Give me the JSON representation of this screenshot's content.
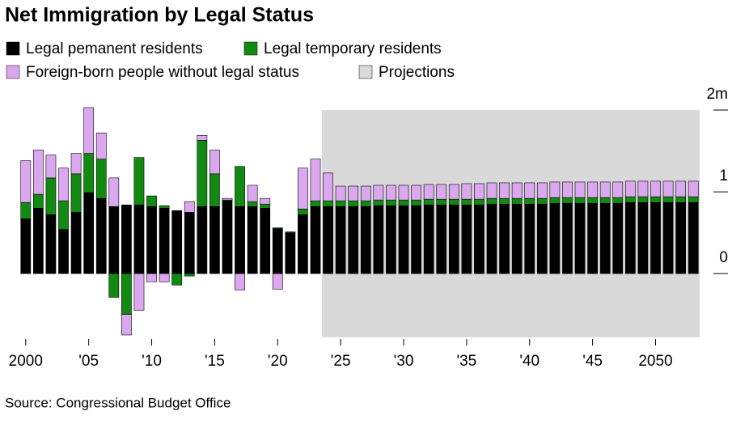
{
  "chart_data": {
    "type": "bar",
    "stacked": true,
    "title": "Net Immigration by Legal Status",
    "source": "Source: Congressional Budget Office",
    "x": [
      2000,
      2001,
      2002,
      2003,
      2004,
      2005,
      2006,
      2007,
      2008,
      2009,
      2010,
      2011,
      2012,
      2013,
      2014,
      2015,
      2016,
      2017,
      2018,
      2019,
      2020,
      2021,
      2022,
      2023,
      2024,
      2025,
      2026,
      2027,
      2028,
      2029,
      2030,
      2031,
      2032,
      2033,
      2034,
      2035,
      2036,
      2037,
      2038,
      2039,
      2040,
      2041,
      2042,
      2043,
      2044,
      2045,
      2046,
      2047,
      2048,
      2049,
      2050,
      2051,
      2052,
      2053
    ],
    "series": [
      {
        "name": "Legal pemanent residents",
        "color": "#000000",
        "values": [
          0.67,
          0.8,
          0.72,
          0.54,
          0.75,
          0.99,
          0.92,
          0.82,
          0.84,
          0.84,
          0.82,
          0.8,
          0.77,
          0.75,
          0.82,
          0.82,
          0.89,
          0.82,
          0.82,
          0.8,
          0.55,
          0.5,
          0.72,
          0.82,
          0.82,
          0.82,
          0.82,
          0.82,
          0.83,
          0.83,
          0.83,
          0.83,
          0.84,
          0.84,
          0.84,
          0.84,
          0.84,
          0.85,
          0.85,
          0.85,
          0.85,
          0.85,
          0.86,
          0.86,
          0.86,
          0.86,
          0.86,
          0.86,
          0.87,
          0.87,
          0.87,
          0.87,
          0.87,
          0.87
        ]
      },
      {
        "name": "Legal temporary residents",
        "color": "#128a12",
        "values": [
          0.2,
          0.17,
          0.45,
          0.35,
          0.47,
          0.48,
          0.48,
          -0.29,
          -0.5,
          0.58,
          0.13,
          0.03,
          -0.14,
          -0.03,
          0.81,
          0.4,
          0.01,
          0.49,
          0.06,
          0.05,
          0.01,
          0.01,
          0.07,
          0.07,
          0.07,
          0.07,
          0.07,
          0.07,
          0.07,
          0.07,
          0.07,
          0.07,
          0.07,
          0.07,
          0.07,
          0.07,
          0.07,
          0.07,
          0.07,
          0.07,
          0.07,
          0.07,
          0.07,
          0.07,
          0.07,
          0.07,
          0.07,
          0.07,
          0.07,
          0.07,
          0.07,
          0.07,
          0.07,
          0.07
        ]
      },
      {
        "name": "Foreign-born people without legal status",
        "color": "#dba8f0",
        "values": [
          0.51,
          0.54,
          0.28,
          0.4,
          0.25,
          0.56,
          0.32,
          0.35,
          -0.25,
          -0.45,
          -0.1,
          -0.1,
          0,
          0.13,
          0.06,
          0.29,
          0.02,
          -0.2,
          0.2,
          0.07,
          -0.19,
          0,
          0.5,
          0.51,
          0.34,
          0.18,
          0.18,
          0.18,
          0.18,
          0.18,
          0.18,
          0.18,
          0.18,
          0.18,
          0.18,
          0.19,
          0.19,
          0.19,
          0.19,
          0.19,
          0.19,
          0.19,
          0.19,
          0.19,
          0.19,
          0.19,
          0.19,
          0.19,
          0.19,
          0.19,
          0.19,
          0.19,
          0.19,
          0.19
        ]
      }
    ],
    "projections": {
      "label": "Projections",
      "color": "#d9d9d9",
      "range": [
        2023.5,
        2053.5
      ]
    },
    "xlim": [
      1999.5,
      2053.5
    ],
    "xticks": [
      2000,
      {
        "value": 2005,
        "label": "'05"
      },
      {
        "value": 2010,
        "label": "'10"
      },
      {
        "value": 2015,
        "label": "'15"
      },
      {
        "value": 2020,
        "label": "'20"
      },
      {
        "value": 2025,
        "label": "'25"
      },
      {
        "value": 2030,
        "label": "'30"
      },
      {
        "value": 2035,
        "label": "'35"
      },
      {
        "value": 2040,
        "label": "'40"
      },
      {
        "value": 2045,
        "label": "'45"
      },
      2050
    ],
    "ylim": [
      -0.78,
      2.0
    ],
    "yticks": [
      0,
      1,
      {
        "value": 2,
        "label": "2m"
      }
    ]
  }
}
